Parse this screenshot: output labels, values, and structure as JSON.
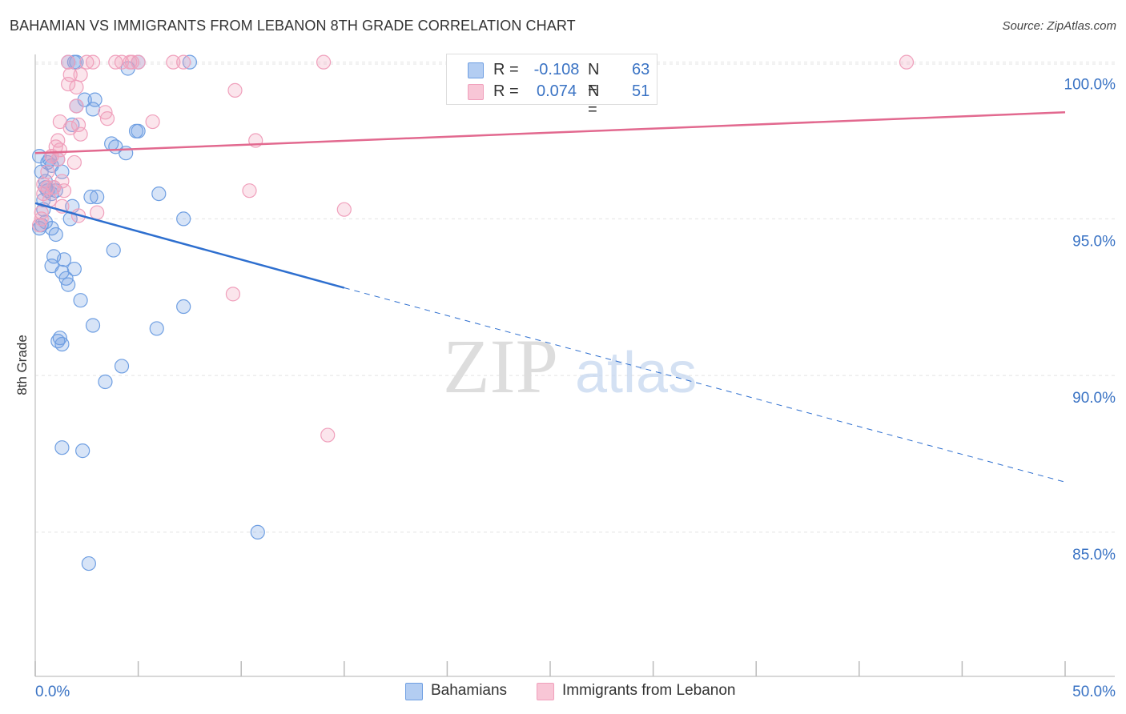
{
  "title": "BAHAMIAN VS IMMIGRANTS FROM LEBANON 8TH GRADE CORRELATION CHART",
  "source": "Source: ZipAtlas.com",
  "watermark": {
    "zip": "ZIP",
    "atlas": "atlas"
  },
  "legend": {
    "row1": {
      "r_label": "R =",
      "r_value": "-0.108",
      "n_label": "N =",
      "n_value": "63"
    },
    "row2": {
      "r_label": "R =",
      "r_value": "0.074",
      "n_label": "N =",
      "n_value": "51"
    }
  },
  "bottom_legend": {
    "series1": "Bahamians",
    "series2": "Immigrants from Lebanon"
  },
  "chart_data": {
    "type": "scatter",
    "title": "BAHAMIAN VS IMMIGRANTS FROM LEBANON 8TH GRADE CORRELATION CHART",
    "xlabel": "",
    "ylabel": "8th Grade",
    "xlim": [
      0,
      50
    ],
    "ylim": [
      80.4,
      100.4
    ],
    "x_tick_labels": [
      "0.0%",
      "50.0%"
    ],
    "y_ticks": [
      {
        "value": 100,
        "label": "100.0%"
      },
      {
        "value": 95,
        "label": "95.0%"
      },
      {
        "value": 90,
        "label": "90.0%"
      },
      {
        "value": 85,
        "label": "85.0%"
      }
    ],
    "colors": {
      "series1": "#6f9fe2",
      "series2": "#f0a0bc",
      "line1": "#2e6fcf",
      "line2": "#e2698f"
    },
    "series": [
      {
        "name": "Bahamians",
        "r": -0.108,
        "n": 63,
        "trend": {
          "solid": [
            [
              0,
              95.5
            ],
            [
              15,
              92.8
            ]
          ],
          "dashed": [
            [
              15,
              92.8
            ],
            [
              50,
              86.6
            ]
          ]
        },
        "points": [
          [
            1.6,
            100.0
          ],
          [
            1.9,
            100.0
          ],
          [
            2.0,
            100.0
          ],
          [
            4.5,
            99.8
          ],
          [
            5.0,
            100.0
          ],
          [
            7.5,
            100.0
          ],
          [
            2.4,
            98.8
          ],
          [
            2.9,
            98.8
          ],
          [
            2.8,
            98.5
          ],
          [
            2.0,
            98.6
          ],
          [
            4.9,
            97.8
          ],
          [
            5.0,
            97.8
          ],
          [
            3.7,
            97.4
          ],
          [
            3.9,
            97.3
          ],
          [
            4.4,
            97.1
          ],
          [
            1.8,
            98.0
          ],
          [
            0.6,
            96.8
          ],
          [
            0.8,
            96.7
          ],
          [
            0.3,
            96.5
          ],
          [
            1.3,
            96.5
          ],
          [
            0.5,
            96.2
          ],
          [
            0.6,
            95.9
          ],
          [
            0.8,
            95.8
          ],
          [
            0.4,
            95.6
          ],
          [
            1.8,
            95.4
          ],
          [
            2.7,
            95.7
          ],
          [
            3.0,
            95.7
          ],
          [
            6.0,
            95.8
          ],
          [
            7.2,
            95.0
          ],
          [
            1.7,
            95.0
          ],
          [
            0.3,
            94.8
          ],
          [
            0.8,
            94.7
          ],
          [
            1.0,
            94.5
          ],
          [
            3.8,
            94.0
          ],
          [
            0.9,
            93.8
          ],
          [
            0.8,
            93.5
          ],
          [
            1.4,
            93.7
          ],
          [
            1.3,
            93.3
          ],
          [
            1.9,
            93.4
          ],
          [
            1.5,
            93.1
          ],
          [
            1.6,
            92.9
          ],
          [
            2.2,
            92.4
          ],
          [
            7.2,
            92.2
          ],
          [
            2.8,
            91.6
          ],
          [
            5.9,
            91.5
          ],
          [
            1.2,
            91.2
          ],
          [
            1.1,
            91.1
          ],
          [
            1.3,
            91.0
          ],
          [
            4.2,
            90.3
          ],
          [
            3.4,
            89.8
          ],
          [
            1.3,
            87.7
          ],
          [
            2.3,
            87.6
          ],
          [
            10.8,
            85.0
          ],
          [
            2.6,
            84.0
          ],
          [
            0.4,
            95.3
          ],
          [
            0.5,
            96.0
          ],
          [
            0.9,
            96.0
          ],
          [
            1.0,
            95.9
          ],
          [
            0.2,
            97.0
          ],
          [
            0.7,
            96.9
          ],
          [
            1.1,
            96.9
          ],
          [
            0.5,
            94.9
          ],
          [
            0.2,
            94.7
          ]
        ]
      },
      {
        "name": "Immigrants from Lebanon",
        "r": 0.074,
        "n": 51,
        "trend": {
          "solid": [
            [
              0,
              97.1
            ],
            [
              50,
              98.4
            ]
          ]
        },
        "points": [
          [
            1.6,
            100.0
          ],
          [
            2.5,
            100.0
          ],
          [
            2.8,
            100.0
          ],
          [
            3.9,
            100.0
          ],
          [
            4.2,
            100.0
          ],
          [
            4.6,
            100.0
          ],
          [
            4.7,
            100.0
          ],
          [
            5.0,
            100.0
          ],
          [
            6.7,
            100.0
          ],
          [
            7.2,
            100.0
          ],
          [
            14.0,
            100.0
          ],
          [
            42.3,
            100.0
          ],
          [
            1.7,
            99.6
          ],
          [
            2.2,
            99.6
          ],
          [
            1.6,
            99.3
          ],
          [
            2.0,
            99.2
          ],
          [
            9.7,
            99.1
          ],
          [
            2.0,
            98.6
          ],
          [
            3.4,
            98.4
          ],
          [
            3.5,
            98.2
          ],
          [
            5.7,
            98.1
          ],
          [
            1.2,
            98.1
          ],
          [
            2.1,
            98.0
          ],
          [
            1.7,
            97.9
          ],
          [
            2.2,
            97.7
          ],
          [
            1.1,
            97.5
          ],
          [
            10.7,
            97.5
          ],
          [
            1.0,
            97.3
          ],
          [
            1.2,
            97.2
          ],
          [
            0.8,
            97.0
          ],
          [
            1.1,
            96.9
          ],
          [
            1.9,
            96.8
          ],
          [
            1.3,
            96.2
          ],
          [
            0.4,
            96.1
          ],
          [
            0.6,
            96.0
          ],
          [
            0.9,
            96.0
          ],
          [
            1.4,
            95.9
          ],
          [
            10.4,
            95.9
          ],
          [
            0.4,
            95.8
          ],
          [
            0.7,
            95.6
          ],
          [
            1.3,
            95.4
          ],
          [
            0.3,
            95.2
          ],
          [
            3.0,
            95.2
          ],
          [
            2.1,
            95.1
          ],
          [
            15.0,
            95.3
          ],
          [
            9.6,
            92.6
          ],
          [
            14.2,
            88.1
          ],
          [
            0.3,
            95.0
          ],
          [
            0.2,
            94.8
          ],
          [
            0.6,
            96.5
          ],
          [
            0.8,
            97.0
          ]
        ]
      }
    ]
  }
}
